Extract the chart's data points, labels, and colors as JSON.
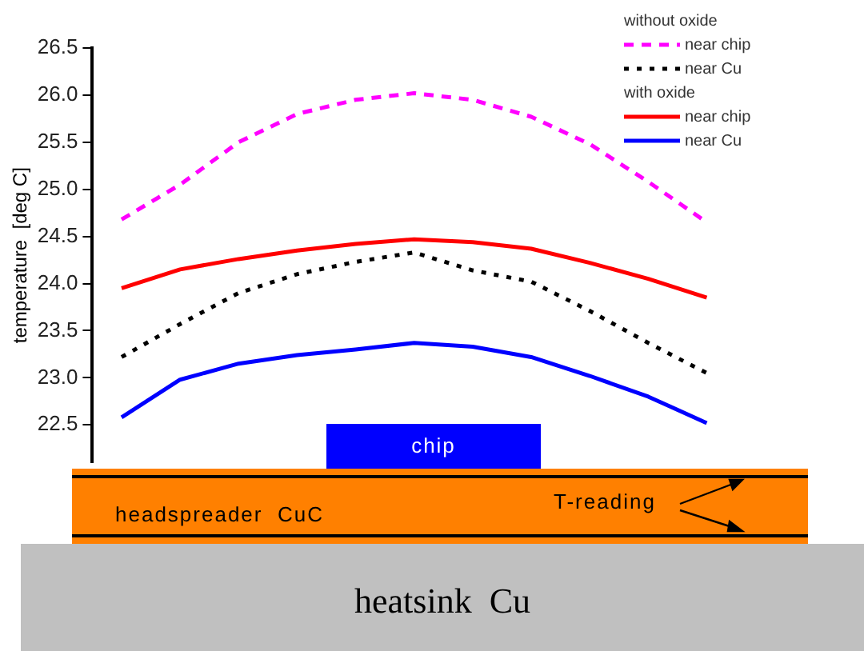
{
  "chart_data": {
    "type": "line",
    "ylabel": "temperature  [deg C]",
    "categories": [
      null,
      null,
      null,
      null,
      null,
      null,
      null,
      null,
      null,
      null,
      null
    ],
    "series": [
      {
        "name": "near chip",
        "color": "#ff00ff",
        "line_style": "dashed",
        "values": [
          24.68,
          25.05,
          25.5,
          25.8,
          25.95,
          26.02,
          25.95,
          25.77,
          25.48,
          25.08,
          24.65
        ]
      },
      {
        "name": "near Cu",
        "color": "#000000",
        "line_style": "dotted",
        "values": [
          23.22,
          23.57,
          23.9,
          24.1,
          24.23,
          24.33,
          24.14,
          24.02,
          23.71,
          23.37,
          23.05
        ]
      },
      {
        "name": "near chip",
        "color": "#ff0000",
        "line_style": "solid",
        "values": [
          23.95,
          24.15,
          24.26,
          24.35,
          24.42,
          24.47,
          24.44,
          24.37,
          24.22,
          24.05,
          23.85
        ]
      },
      {
        "name": "near Cu",
        "color": "#0000ff",
        "line_style": "solid",
        "values": [
          22.58,
          22.98,
          23.15,
          23.24,
          23.3,
          23.37,
          23.33,
          23.22,
          23.02,
          22.8,
          22.52
        ]
      }
    ],
    "ylim": [
      22.1,
      26.5
    ],
    "yticks": [
      {
        "value": 22.5,
        "label": "22.5"
      },
      {
        "value": 23,
        "label": "23.0"
      },
      {
        "value": 23.5,
        "label": "23.5"
      },
      {
        "value": 24,
        "label": "24.0"
      },
      {
        "value": 24.5,
        "label": "24.5"
      },
      {
        "value": 25,
        "label": "25.0"
      },
      {
        "value": 25.5,
        "label": "25.5"
      },
      {
        "value": 26,
        "label": "26.0"
      },
      {
        "value": 26.5,
        "label": "26.5"
      }
    ],
    "grid": false,
    "legend": "top right",
    "marker": "none",
    "tick_labels": "y",
    "annotations": [
      "without oxide",
      "with oxide",
      "chip",
      "headspreader  CuC",
      "T-reading",
      "heatsink  Cu"
    ]
  }
}
